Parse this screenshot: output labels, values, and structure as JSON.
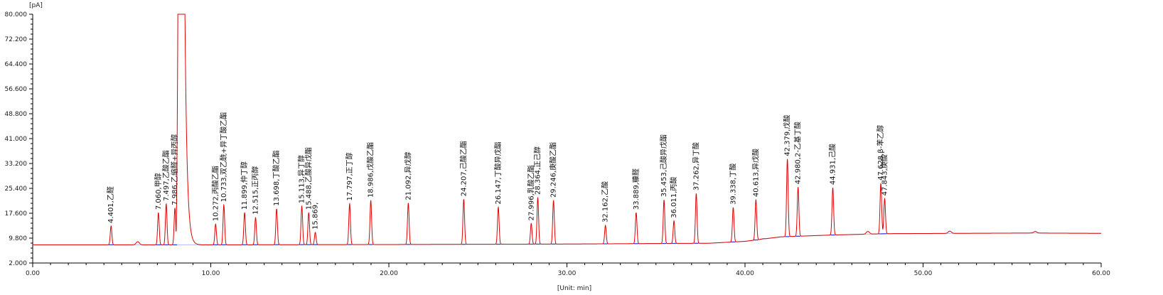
{
  "chart_data": {
    "type": "line",
    "y_unit_label": "[pA]",
    "x_unit_label": "[Unit: min]",
    "xlim": [
      0,
      60
    ],
    "ylim": [
      2,
      80
    ],
    "x_ticks": [
      "0.00",
      "10.00",
      "20.00",
      "30.00",
      "40.00",
      "50.00",
      "60.00"
    ],
    "y_ticks": [
      "2.000",
      "9.800",
      "17.600",
      "25.400",
      "33.200",
      "41.000",
      "48.800",
      "56.600",
      "64.400",
      "72.200",
      "80.000"
    ],
    "grid": false,
    "colors": {
      "trace": "#e00000",
      "baseline": "#2b3bd6",
      "axis": "#000000"
    },
    "baseline_level": 7.7,
    "baseline_points": [
      [
        0,
        7.7
      ],
      [
        10,
        7.7
      ],
      [
        20,
        7.8
      ],
      [
        30,
        7.95
      ],
      [
        38,
        8.2
      ],
      [
        40,
        8.8
      ],
      [
        42,
        10.2
      ],
      [
        45,
        10.8
      ],
      [
        48,
        11.2
      ],
      [
        52,
        11.3
      ],
      [
        56,
        11.4
      ],
      [
        60,
        11.3
      ]
    ],
    "solvent_peak": {
      "start": 8.15,
      "end": 8.55,
      "height": 80,
      "tail_to": 9.8
    },
    "peaks": [
      {
        "rt": 4.401,
        "height": 13.6,
        "label": "4.401,乙醛"
      },
      {
        "rt": 7.06,
        "height": 17.8,
        "label": "7.060,甲醇"
      },
      {
        "rt": 7.497,
        "height": 20.5,
        "label": "7.497,乙酸乙酯"
      },
      {
        "rt": 7.986,
        "height": 19.2,
        "label": "7.986,乙缩醛+异丙醇"
      },
      {
        "rt": 10.272,
        "height": 14.2,
        "label": "10.272,丙酸乙酯"
      },
      {
        "rt": 10.733,
        "height": 20.2,
        "label": "10.733,双乙酰+异丁酸乙酯"
      },
      {
        "rt": 11.899,
        "height": 17.8,
        "label": "11.899,仲丁醇"
      },
      {
        "rt": 12.515,
        "height": 16.3,
        "label": "12.515,正丙醇"
      },
      {
        "rt": 13.698,
        "height": 19.0,
        "label": "13.698,丁酸乙酯"
      },
      {
        "rt": 15.113,
        "height": 19.8,
        "label": "15.113,异丁醇"
      },
      {
        "rt": 15.5,
        "height": 17.8,
        "label": "15.488,乙酸异戊酯"
      },
      {
        "rt": 15.869,
        "height": 11.6,
        "label": "15.869,"
      },
      {
        "rt": 17.797,
        "height": 20.6,
        "label": "17.797,正丁醇"
      },
      {
        "rt": 18.986,
        "height": 21.6,
        "label": "18.986,戊酸乙酯"
      },
      {
        "rt": 21.092,
        "height": 20.8,
        "label": "21.092,异戊醇"
      },
      {
        "rt": 24.207,
        "height": 22.0,
        "label": "24.207,己酸乙酯"
      },
      {
        "rt": 26.147,
        "height": 19.5,
        "label": "26.147,丁酸异戊酯"
      },
      {
        "rt": 27.996,
        "height": 14.4,
        "label": "27.996,乳酸乙酯"
      },
      {
        "rt": 28.364,
        "height": 22.5,
        "label": "28.364,正己醇"
      },
      {
        "rt": 29.246,
        "height": 21.6,
        "label": "29.246,庚酸乙酯"
      },
      {
        "rt": 32.162,
        "height": 13.8,
        "label": "32.162,乙酸"
      },
      {
        "rt": 33.889,
        "height": 17.8,
        "label": "33.889,糠醛"
      },
      {
        "rt": 35.453,
        "height": 21.8,
        "label": "35.453,己酸异戊酯"
      },
      {
        "rt": 36.011,
        "height": 15.2,
        "label": "36.011,丙酸"
      },
      {
        "rt": 37.262,
        "height": 23.8,
        "label": "37.262,异丁酸"
      },
      {
        "rt": 39.338,
        "height": 19.4,
        "label": "39.338,丁酸"
      },
      {
        "rt": 40.613,
        "height": 21.8,
        "label": "40.613,异戊酸"
      },
      {
        "rt": 42.379,
        "height": 34.6,
        "label": "42.379,戊酸"
      },
      {
        "rt": 42.98,
        "height": 25.8,
        "label": "42.980,2-乙基丁酸"
      },
      {
        "rt": 44.931,
        "height": 25.6,
        "label": "44.931,己酸"
      },
      {
        "rt": 47.628,
        "height": 27.0,
        "label": "47.628,β-苯乙醇"
      },
      {
        "rt": 47.843,
        "height": 22.2,
        "label": "47.843,庚酸"
      }
    ],
    "minor_bumps": [
      {
        "rt": 5.9,
        "height": 8.7
      },
      {
        "rt": 41.0,
        "height": 9.6
      },
      {
        "rt": 46.9,
        "height": 11.9
      },
      {
        "rt": 51.5,
        "height": 12.0
      },
      {
        "rt": 56.3,
        "height": 11.9
      }
    ]
  }
}
